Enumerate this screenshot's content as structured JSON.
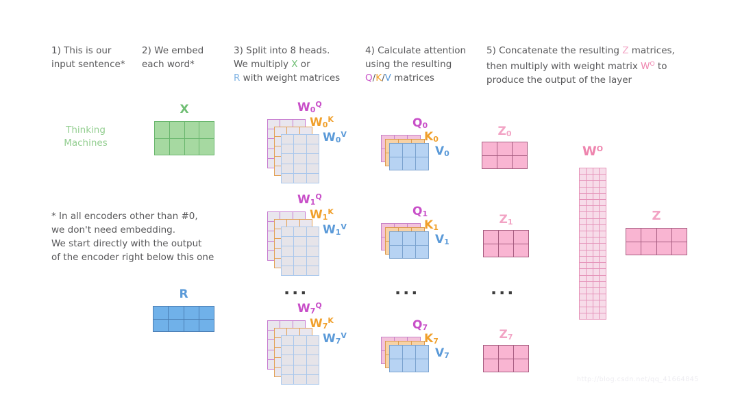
{
  "steps": {
    "s1": {
      "l1": "1) This is our",
      "l2": "input sentence*"
    },
    "s2": {
      "l1": "2) We embed",
      "l2": "each word*"
    },
    "s3": {
      "l1": "3) Split into 8 heads.",
      "l2a": "We multiply ",
      "x": "X",
      "l2b": " or",
      "r": "R",
      "l3b": " with weight matrices"
    },
    "s4": {
      "l1": "4) Calculate attention",
      "l2": "using the resulting",
      "q": "Q",
      "sep1": "/",
      "k": "K",
      "sep2": "/",
      "v": "V",
      "l3b": " matrices"
    },
    "s5": {
      "l1a": "5) Concatenate the resulting ",
      "z": "Z",
      "l1b": " matrices,",
      "l2a": "then multiply with weight matrix ",
      "w": "W",
      "wsup": "O",
      "l2b": " to",
      "l3": "produce the output of the layer"
    }
  },
  "note": "* In all encoders other than #0,\nwe don't need embedding.\nWe start directly with the output\nof the encoder right below this one",
  "row1": {
    "input_label": "Thinking\nMachines",
    "x_label": "X",
    "w_labels": [
      {
        "base": "W",
        "sub": "0",
        "sup": "Q"
      },
      {
        "base": "W",
        "sub": "0",
        "sup": "K"
      },
      {
        "base": "W",
        "sub": "0",
        "sup": "V"
      }
    ],
    "qkv_labels": [
      {
        "base": "Q",
        "sub": "0"
      },
      {
        "base": "K",
        "sub": "0"
      },
      {
        "base": "V",
        "sub": "0"
      }
    ],
    "z_label": {
      "base": "Z",
      "sub": "0"
    }
  },
  "row2": {
    "w_labels": [
      {
        "base": "W",
        "sub": "1",
        "sup": "Q"
      },
      {
        "base": "W",
        "sub": "1",
        "sup": "K"
      },
      {
        "base": "W",
        "sub": "1",
        "sup": "V"
      }
    ],
    "qkv_labels": [
      {
        "base": "Q",
        "sub": "1"
      },
      {
        "base": "K",
        "sub": "1"
      },
      {
        "base": "V",
        "sub": "1"
      }
    ],
    "z_label": {
      "base": "Z",
      "sub": "1"
    }
  },
  "row3": {
    "r_label": "R",
    "ellipsis": "...",
    "w_labels": [
      {
        "base": "W",
        "sub": "7",
        "sup": "Q"
      },
      {
        "base": "W",
        "sub": "7",
        "sup": "K"
      },
      {
        "base": "W",
        "sub": "7",
        "sup": "V"
      }
    ],
    "qkv_labels": [
      {
        "base": "Q",
        "sub": "7"
      },
      {
        "base": "K",
        "sub": "7"
      },
      {
        "base": "V",
        "sub": "7"
      }
    ],
    "z_label": {
      "base": "Z",
      "sub": "7"
    }
  },
  "right": {
    "wo_label": {
      "base": "W",
      "sup": "O"
    },
    "z_label": "Z"
  },
  "watermark": "http://blog.csdn.net/qq_41664845"
}
